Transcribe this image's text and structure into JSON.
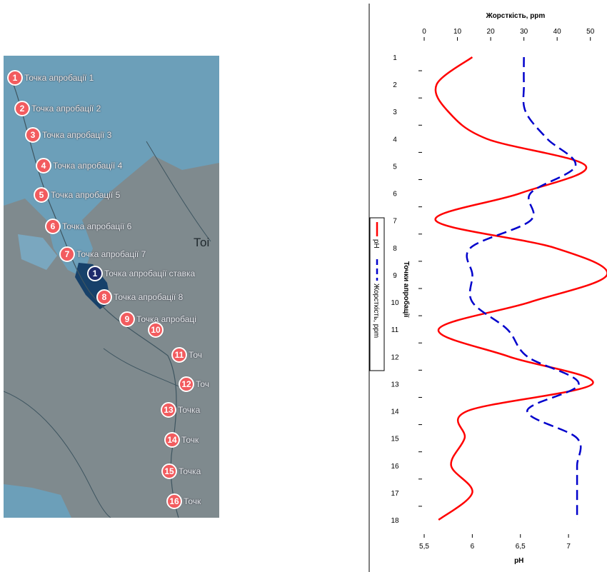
{
  "map": {
    "city_label": "Тоі",
    "markers": [
      {
        "num": "1",
        "label": "Точка апробації 1"
      },
      {
        "num": "2",
        "label": "Точка апробації 2"
      },
      {
        "num": "3",
        "label": "Точка апробації 3"
      },
      {
        "num": "4",
        "label": "Точка апробації 4"
      },
      {
        "num": "5",
        "label": "Точка апробації 5"
      },
      {
        "num": "6",
        "label": "Точка апробації 6"
      },
      {
        "num": "7",
        "label": "Точка апробації 7"
      },
      {
        "num": "1",
        "label": "Точка апробації ставка",
        "style": "dark"
      },
      {
        "num": "8",
        "label": "Точка апробації 8"
      },
      {
        "num": "9",
        "label": "Точка апробаці"
      },
      {
        "num": "10",
        "label": ""
      },
      {
        "num": "11",
        "label": "Точ"
      },
      {
        "num": "12",
        "label": "Точ"
      },
      {
        "num": "13",
        "label": "Точка"
      },
      {
        "num": "14",
        "label": "Точк"
      },
      {
        "num": "15",
        "label": "Точка"
      },
      {
        "num": "16",
        "label": "Точк"
      }
    ],
    "colors": {
      "pin": "#f25c5f",
      "pin_dark": "#1f2a6b",
      "land": "#7f8a8e",
      "water": "#6c9fb9"
    }
  },
  "chart_data": {
    "type": "line",
    "orientation": "vertical",
    "ylabel": "Точки апробації",
    "y_categories": [
      "1",
      "2",
      "3",
      "4",
      "5",
      "6",
      "7",
      "8",
      "9",
      "10",
      "11",
      "12",
      "13",
      "14",
      "15",
      "16",
      "17",
      "18"
    ],
    "ylim": [
      1,
      18
    ],
    "y_inverted": true,
    "top_axis": {
      "label": "Жорсткість, ppm",
      "range": [
        0,
        55
      ],
      "ticks": [
        "0",
        "10",
        "20",
        "30",
        "40",
        "50"
      ]
    },
    "bottom_axis": {
      "label": "pH",
      "range": [
        5.5,
        7.4
      ],
      "ticks": [
        "5,5",
        "6",
        "6,5",
        "7"
      ]
    },
    "series": [
      {
        "name": "pH",
        "axis": "bottom",
        "color": "#ff0000",
        "style": "solid",
        "values": [
          6.0,
          5.63,
          5.75,
          6.15,
          7.18,
          6.5,
          5.62,
          6.85,
          7.4,
          6.6,
          5.65,
          6.38,
          7.25,
          5.95,
          5.92,
          5.78,
          6.0,
          5.65
        ]
      },
      {
        "name": "Жорсткість, ppm",
        "axis": "top",
        "color": "#0000cc",
        "style": "dashed",
        "values": [
          30,
          30,
          30.5,
          37,
          45.5,
          32,
          32,
          14,
          14.5,
          14.5,
          25,
          31,
          46.5,
          31,
          46,
          46,
          46,
          46
        ]
      }
    ],
    "legend": {
      "position": "left",
      "entries": [
        "pH",
        "Жорсткість, ppm"
      ]
    },
    "grid": false
  }
}
